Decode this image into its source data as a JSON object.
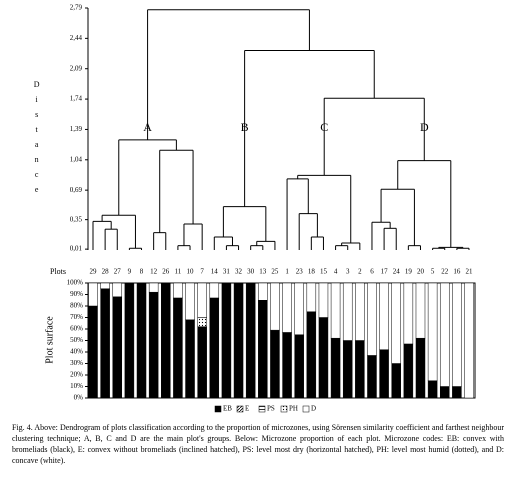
{
  "chart_data": [
    {
      "type": "dendrogram",
      "ylabel": "Distance",
      "ylim": [
        0,
        2.79
      ],
      "yticks": [
        {
          "value": 0.01,
          "label": "0,01"
        },
        {
          "value": 0.35,
          "label": "0,35"
        },
        {
          "value": 0.69,
          "label": "0,69"
        },
        {
          "value": 1.04,
          "label": "1,04"
        },
        {
          "value": 1.39,
          "label": "1,39"
        },
        {
          "value": 1.74,
          "label": "1,74"
        },
        {
          "value": 2.09,
          "label": "2,09"
        },
        {
          "value": 2.44,
          "label": "2,44"
        },
        {
          "value": 2.79,
          "label": "2,79"
        }
      ],
      "merges": [
        [
          1,
          2,
          0.24
        ],
        [
          0,
          32,
          0.33
        ],
        [
          3,
          4,
          0.02
        ],
        [
          33,
          34,
          0.4
        ],
        [
          5,
          6,
          0.2
        ],
        [
          7,
          8,
          0.05
        ],
        [
          37,
          9,
          0.3
        ],
        [
          36,
          38,
          1.15
        ],
        [
          35,
          39,
          1.27
        ],
        [
          11,
          12,
          0.05
        ],
        [
          10,
          41,
          0.15
        ],
        [
          13,
          14,
          0.05
        ],
        [
          43,
          15,
          0.1
        ],
        [
          42,
          44,
          0.5
        ],
        [
          18,
          19,
          0.15
        ],
        [
          17,
          46,
          0.42
        ],
        [
          16,
          47,
          0.82
        ],
        [
          20,
          21,
          0.05
        ],
        [
          49,
          22,
          0.08
        ],
        [
          48,
          50,
          0.86
        ],
        [
          24,
          25,
          0.25
        ],
        [
          23,
          52,
          0.32
        ],
        [
          26,
          27,
          0.05
        ],
        [
          53,
          54,
          0.7
        ],
        [
          28,
          29,
          0.02
        ],
        [
          30,
          31,
          0.02
        ],
        [
          56,
          57,
          0.03
        ],
        [
          55,
          58,
          1.03
        ],
        [
          51,
          59,
          1.75
        ],
        [
          45,
          60,
          2.3
        ],
        [
          40,
          61,
          2.77
        ]
      ],
      "group_labels": [
        "A",
        "B",
        "C",
        "D"
      ]
    },
    {
      "type": "stacked_bar",
      "xlabel": "Plots",
      "ylabel": "Plot surface",
      "categories": [
        "29",
        "28",
        "27",
        "9",
        "8",
        "12",
        "26",
        "11",
        "10",
        "7",
        "14",
        "31",
        "32",
        "30",
        "13",
        "25",
        "1",
        "23",
        "18",
        "15",
        "4",
        "3",
        "2",
        "6",
        "17",
        "24",
        "19",
        "20",
        "5",
        "22",
        "16",
        "21"
      ],
      "ylim": [
        0,
        100
      ],
      "yticks": [
        {
          "value": 0,
          "label": "0%"
        },
        {
          "value": 10,
          "label": "10%"
        },
        {
          "value": 20,
          "label": "20%"
        },
        {
          "value": 30,
          "label": "30%"
        },
        {
          "value": 40,
          "label": "40%"
        },
        {
          "value": 50,
          "label": "50%"
        },
        {
          "value": 60,
          "label": "60%"
        },
        {
          "value": 70,
          "label": "70%"
        },
        {
          "value": 80,
          "label": "80%"
        },
        {
          "value": 90,
          "label": "90%"
        },
        {
          "value": 100,
          "label": "100%"
        }
      ],
      "series": [
        {
          "name": "EB",
          "color": "#000000",
          "hatch": "solid",
          "values": [
            80,
            95,
            88,
            100,
            100,
            92,
            100,
            87,
            68,
            62,
            87,
            100,
            100,
            100,
            85,
            59,
            57,
            55,
            75,
            70,
            52,
            50,
            50,
            37,
            42,
            30,
            47,
            52,
            15,
            10,
            10,
            0
          ]
        },
        {
          "name": "E",
          "color": "#000000",
          "hatch": "diagonal",
          "values": [
            0,
            0,
            0,
            0,
            0,
            0,
            0,
            0,
            0,
            0,
            0,
            0,
            0,
            0,
            0,
            0,
            0,
            0,
            0,
            0,
            0,
            0,
            0,
            0,
            0,
            0,
            0,
            0,
            0,
            0,
            0,
            0
          ]
        },
        {
          "name": "PS",
          "color": "#000000",
          "hatch": "horizontal",
          "values": [
            0,
            0,
            0,
            0,
            0,
            0,
            0,
            0,
            0,
            0,
            0,
            0,
            0,
            0,
            0,
            0,
            0,
            0,
            0,
            0,
            0,
            0,
            0,
            0,
            0,
            0,
            0,
            0,
            0,
            0,
            0,
            0
          ]
        },
        {
          "name": "PH",
          "color": "#000000",
          "hatch": "dotted",
          "values": [
            0,
            0,
            0,
            0,
            0,
            0,
            0,
            0,
            0,
            8,
            0,
            0,
            0,
            0,
            0,
            0,
            0,
            0,
            0,
            0,
            0,
            0,
            0,
            0,
            0,
            0,
            0,
            0,
            0,
            0,
            0,
            0
          ]
        },
        {
          "name": "D",
          "color": "#ffffff",
          "hatch": "solid",
          "values": [
            20,
            5,
            12,
            0,
            0,
            8,
            0,
            13,
            32,
            30,
            13,
            0,
            0,
            0,
            15,
            41,
            43,
            45,
            25,
            30,
            48,
            50,
            50,
            63,
            58,
            70,
            53,
            48,
            85,
            90,
            90,
            100
          ]
        }
      ]
    }
  ],
  "caption": "Fig. 4. Above: Dendrogram of plots classification according to the proportion of microzones, using Sörensen similarity coefficient and farthest neighbour clustering technique; A, B, C and D are the main plot's groups. Below: Microzone proportion of each plot. Microzone codes: EB: convex with bromeliads (black), E: convex without bromeliads (inclined hatched), PS: level most dry (horizontal hatched), PH: level most humid (dotted), and D: concave (white)."
}
